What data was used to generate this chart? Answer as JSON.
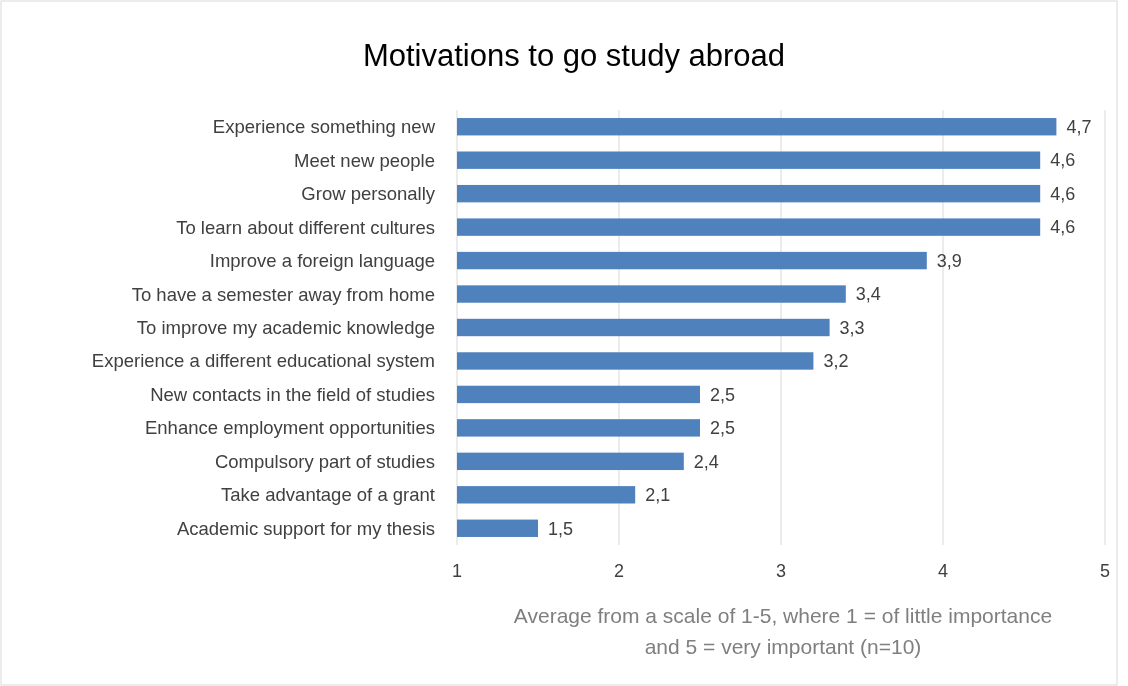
{
  "chart_data": {
    "type": "bar",
    "orientation": "horizontal",
    "title": "Motivations to go study abroad",
    "xlabel": "Average from a scale of 1-5, where 1 = of little importance and 5 = very important (n=10)",
    "categories": [
      "Experience something new",
      "Meet new people",
      "Grow personally",
      "To learn about different cultures",
      "Improve a foreign language",
      "To have a semester away from home",
      "To improve my academic knowledge",
      "Experience a different educational system",
      "New contacts in the field of studies",
      "Enhance employment opportunities",
      "Compulsory part of studies",
      "Take advantage of a grant",
      "Academic support for my thesis"
    ],
    "values": [
      4.7,
      4.6,
      4.6,
      4.6,
      3.9,
      3.4,
      3.3,
      3.2,
      2.5,
      2.5,
      2.4,
      2.1,
      1.5
    ],
    "value_labels": [
      "4,7",
      "4,6",
      "4,6",
      "4,6",
      "3,9",
      "3,4",
      "3,3",
      "3,2",
      "2,5",
      "2,5",
      "2,4",
      "2,1",
      "1,5"
    ],
    "color": "#4f81bd",
    "xlim": [
      1,
      5
    ],
    "xticks": [
      1,
      2,
      3,
      4,
      5
    ],
    "grid": "x"
  }
}
